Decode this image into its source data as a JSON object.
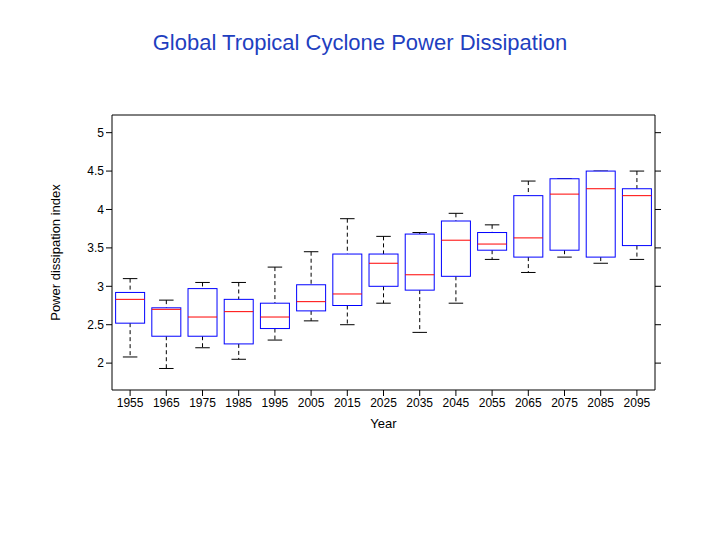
{
  "chart_data": {
    "type": "box",
    "title": "Global Tropical Cyclone Power Dissipation",
    "x_label": "Year",
    "y_label": "Power dissipation index",
    "categories": [
      "1955",
      "1965",
      "1975",
      "1985",
      "1995",
      "2005",
      "2015",
      "2025",
      "2035",
      "2045",
      "2055",
      "2065",
      "2075",
      "2085",
      "2095"
    ],
    "min": [
      2.08,
      1.93,
      2.2,
      2.05,
      2.3,
      2.55,
      2.5,
      2.78,
      2.4,
      2.78,
      3.35,
      3.18,
      3.38,
      3.3,
      3.35
    ],
    "q1": [
      2.52,
      2.35,
      2.35,
      2.25,
      2.45,
      2.68,
      2.75,
      3.0,
      2.95,
      3.13,
      3.47,
      3.38,
      3.47,
      3.38,
      3.53
    ],
    "median": [
      2.83,
      2.7,
      2.6,
      2.67,
      2.6,
      2.8,
      2.9,
      3.3,
      3.15,
      3.6,
      3.55,
      3.63,
      4.2,
      4.27,
      4.18
    ],
    "q3": [
      2.92,
      2.72,
      2.97,
      2.83,
      2.78,
      3.02,
      3.42,
      3.42,
      3.68,
      3.85,
      3.7,
      4.18,
      4.4,
      4.5,
      4.27
    ],
    "max": [
      3.1,
      2.82,
      3.05,
      3.05,
      3.25,
      3.45,
      3.88,
      3.65,
      3.7,
      3.95,
      3.8,
      4.37,
      4.4,
      4.5,
      4.5
    ],
    "color": "#0000ff",
    "ylim": [
      1.65,
      5.23
    ],
    "yticks": [
      2,
      2.5,
      3,
      3.5,
      4,
      4.5,
      5
    ],
    "grid": false
  }
}
